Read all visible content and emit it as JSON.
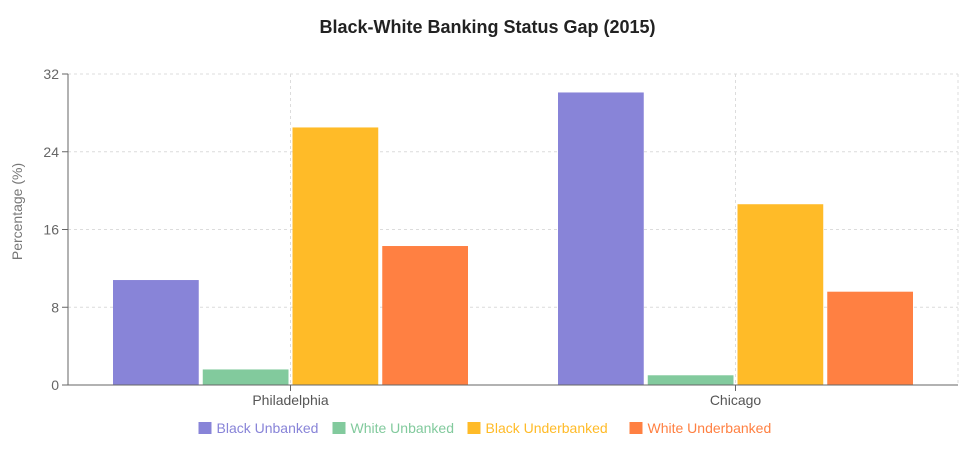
{
  "chart_data": {
    "type": "bar",
    "title": "Black-White Banking Status Gap (2015)",
    "xlabel": "",
    "ylabel": "Percentage (%)",
    "categories": [
      "Philadelphia",
      "Chicago"
    ],
    "series": [
      {
        "name": "Black Unbanked",
        "values": [
          10.8,
          30.1
        ],
        "color": "#8884d8"
      },
      {
        "name": "White Unbanked",
        "values": [
          1.6,
          1.0
        ],
        "color": "#82ca9d"
      },
      {
        "name": "Black Underbanked",
        "values": [
          26.5,
          18.6
        ],
        "color": "#ffbb28"
      },
      {
        "name": "White Underbanked",
        "values": [
          14.3,
          9.6
        ],
        "color": "#ff8042"
      }
    ],
    "ylim": [
      0,
      32
    ],
    "yticks": [
      "0",
      "8",
      "16",
      "24",
      "32"
    ],
    "grid": true,
    "legend_position": "bottom"
  }
}
